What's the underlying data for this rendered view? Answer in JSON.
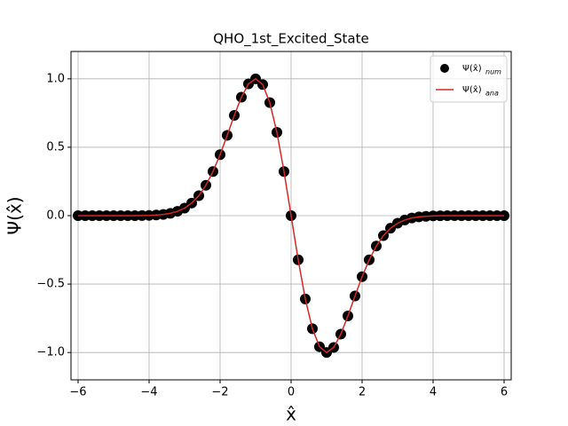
{
  "chart_data": {
    "type": "scatter-line",
    "title": "QHO_1st_Excited_State",
    "xlabel": "x̂",
    "ylabel": "Ψ(x̂)",
    "x": [
      -6,
      -5.8,
      -5.6,
      -5.4,
      -5.2,
      -5,
      -4.8,
      -4.6,
      -4.4,
      -4.2,
      -4,
      -3.8,
      -3.6,
      -3.4,
      -3.2,
      -3,
      -2.8,
      -2.6,
      -2.4,
      -2.2,
      -2,
      -1.8,
      -1.6,
      -1.4,
      -1.2,
      -1,
      -0.8,
      -0.6,
      -0.4,
      -0.2,
      0,
      0.2,
      0.4,
      0.6,
      0.8,
      1,
      1.2,
      1.4,
      1.6,
      1.8,
      2,
      2.2,
      2.4,
      2.6,
      2.8,
      3,
      3.2,
      3.4,
      3.6,
      3.8,
      4,
      4.2,
      4.4,
      4.6,
      4.8,
      5,
      5.2,
      5.4,
      5.6,
      5.8,
      6
    ],
    "series": [
      {
        "name": "Ψ(x̂)",
        "subscript": "num",
        "kind": "scatter",
        "color": "#000000",
        "values": [
          0,
          0,
          0,
          0,
          0,
          0,
          0,
          0,
          0,
          0.001,
          0.002,
          0.005,
          0.009,
          0.017,
          0.032,
          0.055,
          0.092,
          0.146,
          0.222,
          0.323,
          0.446,
          0.587,
          0.733,
          0.866,
          0.963,
          1,
          0.958,
          0.826,
          0.609,
          0.323,
          0,
          -0.323,
          -0.609,
          -0.826,
          -0.958,
          -1,
          -0.963,
          -0.866,
          -0.733,
          -0.587,
          -0.446,
          -0.323,
          -0.222,
          -0.146,
          -0.092,
          -0.055,
          -0.032,
          -0.017,
          -0.009,
          -0.005,
          -0.002,
          -0.001,
          0,
          0,
          0,
          0,
          0,
          0,
          0,
          0,
          0
        ]
      },
      {
        "name": "Ψ(x̂)",
        "subscript": "ana",
        "kind": "line",
        "color": "#d62728",
        "values": [
          0,
          0,
          0,
          0,
          0,
          0,
          0,
          0,
          0,
          0.001,
          0.002,
          0.005,
          0.009,
          0.017,
          0.032,
          0.055,
          0.092,
          0.146,
          0.222,
          0.323,
          0.446,
          0.587,
          0.733,
          0.866,
          0.963,
          1,
          0.958,
          0.826,
          0.609,
          0.323,
          0,
          -0.323,
          -0.609,
          -0.826,
          -0.958,
          -1,
          -0.963,
          -0.866,
          -0.733,
          -0.587,
          -0.446,
          -0.323,
          -0.222,
          -0.146,
          -0.092,
          -0.055,
          -0.032,
          -0.017,
          -0.009,
          -0.005,
          -0.002,
          -0.001,
          0,
          0,
          0,
          0,
          0,
          0,
          0,
          0,
          0
        ]
      }
    ],
    "xlim": [
      -6.2,
      6.2
    ],
    "ylim": [
      -1.2,
      1.2
    ],
    "xticks": [
      {
        "value": -6,
        "label": "−6"
      },
      {
        "value": -4,
        "label": "−4"
      },
      {
        "value": -2,
        "label": "−2"
      },
      0,
      2,
      4,
      6
    ],
    "yticks": [
      {
        "value": -1,
        "label": "−1.0"
      },
      {
        "value": -0.5,
        "label": "−0.5"
      },
      {
        "value": 0,
        "label": "0.0"
      },
      0.5,
      {
        "value": 1,
        "label": "1.0"
      }
    ],
    "grid": true,
    "legend": "upper right"
  }
}
